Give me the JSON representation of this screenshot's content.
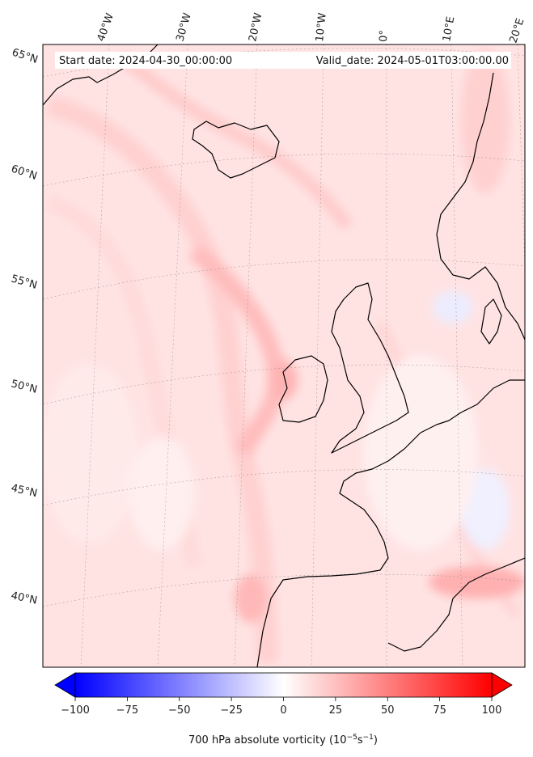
{
  "header": {
    "start_date": "Start date: 2024-04-30_00:00:00",
    "valid_date": "Valid_date: 2024-05-01T03:00:00.00"
  },
  "map": {
    "projection": "conic",
    "longitude_labels": [
      "40°W",
      "30°W",
      "20°W",
      "10°W",
      "0°",
      "10°E",
      "20°E"
    ],
    "latitude_labels": [
      "65°N",
      "60°N",
      "55°N",
      "50°N",
      "45°N",
      "40°N"
    ],
    "gridlines": "dashed",
    "coastline_color": "#000000"
  },
  "colorbar": {
    "title_prefix": "700 hPa absolute vorticity (10",
    "title_exp1": "−5",
    "title_mid": "s",
    "title_exp2": "−1",
    "title_suffix": ")",
    "min": -100,
    "max": 100,
    "ticks": [
      "−100",
      "−75",
      "−50",
      "−25",
      "0",
      "25",
      "50",
      "75",
      "100"
    ],
    "colormap": "bwr",
    "extend": "both",
    "colors": {
      "low": "#0000ff",
      "mid": "#ffffff",
      "high": "#ff0000"
    }
  }
}
